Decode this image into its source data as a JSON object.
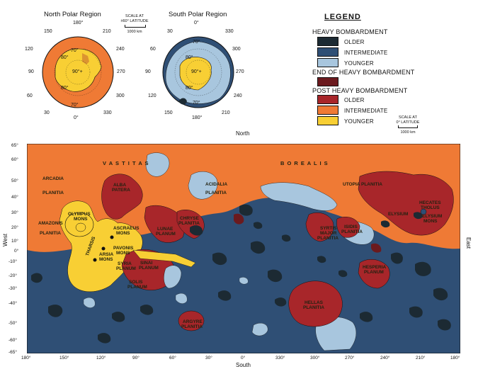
{
  "colors": {
    "older_heavy": "#1c2a33",
    "intermediate_heavy": "#2f4f75",
    "younger_heavy": "#a8c6de",
    "end_heavy": "#6b1a1e",
    "older_post": "#a8262a",
    "intermediate_post": "#ef7a35",
    "younger_post": "#f8cf34"
  },
  "north_polar": {
    "title": "North Polar Region",
    "lon_labels": [
      "180°",
      "150",
      "210",
      "120",
      "240",
      "90",
      "270",
      "60",
      "300",
      "30",
      "330",
      "0°"
    ],
    "lat_labels": [
      "70°",
      "80°",
      "90°+",
      "80°",
      "70°"
    ]
  },
  "south_polar": {
    "title": "South Polar Region",
    "lon_labels": [
      "0°",
      "30",
      "330",
      "60",
      "300",
      "90",
      "270",
      "120",
      "240",
      "150",
      "210",
      "180°"
    ],
    "lat_labels": [
      "70°",
      "80°",
      "90°+",
      "80°",
      "70°"
    ]
  },
  "scale_polar": {
    "line1": "SCALE AT",
    "line2": "±60° LATITUDE",
    "line3": "1000 km"
  },
  "scale_equator": {
    "line1": "SCALE AT",
    "line2": "0° LATITUDE",
    "line3": "1000 km"
  },
  "legend": {
    "title": "LEGEND",
    "heavy": "HEAVY BOMBARDMENT",
    "heavy_older": "OLDER",
    "heavy_intermediate": "INTERMEDIATE",
    "heavy_younger": "YOUNGER",
    "end_heavy": "END OF HEAVY BOMBARDMENT",
    "post": "POST HEAVY BOMBARDMENT",
    "post_older": "OLDER",
    "post_intermediate": "INTERMEDIATE",
    "post_younger": "YOUNGER"
  },
  "map": {
    "north": "North",
    "south": "South",
    "west": "West",
    "east": "East",
    "lat_ticks": [
      "65°",
      "60°",
      "50°",
      "40°",
      "30°",
      "20°",
      "10°",
      "0°",
      "-10°",
      "-20°",
      "-30°",
      "-40°",
      "-50°",
      "-60°",
      "-65°"
    ],
    "lon_ticks": [
      "180°",
      "150°",
      "120°",
      "90°",
      "60°",
      "30°",
      "0°",
      "330°",
      "300°",
      "270°",
      "240°",
      "210°",
      "180°"
    ],
    "places": {
      "vastitas": "V A S T I T A S",
      "borealis": "B O R E A L I S",
      "arcadia": "ARCADIA",
      "arcadia2": "PLANITIA",
      "amazonis": "AMAZONIS",
      "amazonis2": "PLANITIA",
      "acidalia": "ACIDALIA",
      "acidalia2": "PLANITIA",
      "utopia": "UTOPIA  PLANITIA",
      "elysium": "ELYSIUM",
      "olympus": "OLYMPUS",
      "olympus2": "MONS",
      "ascraeus": "ASCRAEUS",
      "ascraeus2": "MONS",
      "pavonis": "PAVONIS",
      "pavonis2": "MONS",
      "arsia": "ARSIA",
      "arsia2": "MONS",
      "tharsis": "THARSIS",
      "alba": "ALBA",
      "alba2": "PATERA",
      "lunae": "LUNAE",
      "lunae2": "PLANUM",
      "chryse": "CHRYSE",
      "chryse2": "PLANITIA",
      "syria": "SYRIA",
      "syria2": "PLANUM",
      "sinai": "SINAI",
      "sinai2": "PLANUM",
      "solis": "SOLIS",
      "solis2": "PLANUM",
      "argyre": "ARGYRE",
      "argyre2": "PLANITIA",
      "syrtis": "SYRTIS",
      "syrtis2": "MAJOR",
      "syrtis3": "PLANITIA",
      "isidis": "ISIDIS",
      "isidis2": "PLANITIA",
      "hellas": "HELLAS",
      "hellas2": "PLANITIA",
      "hesperia": "HESPERIA",
      "hesperia2": "PLANUM",
      "hecates": "HECATES",
      "hecates2": "THOLUS",
      "elysium_mons": "ELYSIUM",
      "elysium_mons2": "MONS"
    }
  }
}
